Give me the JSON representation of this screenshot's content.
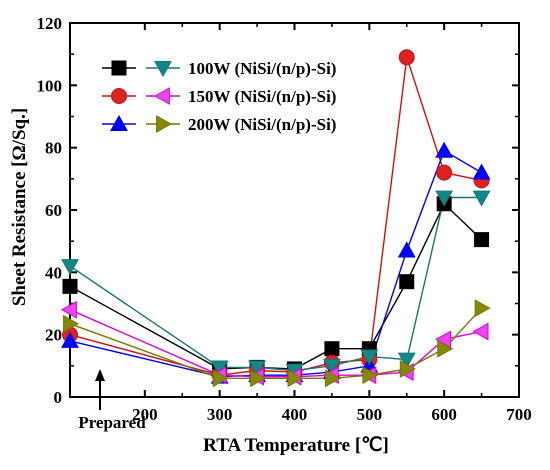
{
  "chart_data": {
    "type": "line",
    "xlabel": "RTA Temperature [℃]",
    "ylabel": "Sheet Resistance [Ω/Sq.]",
    "xlim": [
      100,
      700
    ],
    "ylim": [
      0,
      120
    ],
    "x_ticks": [
      200,
      300,
      400,
      500,
      600,
      700
    ],
    "x_tick_labels": [
      "200",
      "300",
      "400",
      "500",
      "600",
      "700"
    ],
    "y_ticks": [
      0,
      20,
      40,
      60,
      80,
      100,
      120
    ],
    "y_tick_labels": [
      "0",
      "20",
      "40",
      "60",
      "80",
      "100",
      "120"
    ],
    "prepared_label": "Prepared",
    "prepared_x": 100,
    "legend_position": "top-left",
    "grid": false,
    "series": [
      {
        "name": "100W (NiSi/(n/p)-Si)",
        "marker": "square",
        "color": "#000000",
        "fill": "#000000",
        "x": [
          100,
          300,
          350,
          400,
          450,
          500,
          550,
          600,
          650
        ],
        "y": [
          35.5,
          9,
          9.5,
          9,
          15.5,
          15.5,
          37,
          62,
          50.5
        ]
      },
      {
        "name": "150W (NiSi/(n/p)-Si)",
        "marker": "circle",
        "color": "#cc1111",
        "fill": "#dd2222",
        "x": [
          100,
          300,
          350,
          400,
          450,
          500,
          550,
          600,
          650
        ],
        "y": [
          20,
          7,
          8.5,
          8,
          11,
          12,
          109,
          72,
          69.5
        ]
      },
      {
        "name": "200W (NiSi/(n/p)-Si)",
        "marker": "triangle-up",
        "color": "#0000ee",
        "fill": "#0000ff",
        "x": [
          100,
          300,
          350,
          400,
          450,
          500,
          550,
          600,
          650
        ],
        "y": [
          18,
          6.5,
          7,
          7,
          8,
          10,
          47,
          79,
          72
        ]
      },
      {
        "name": "100W (NiSi/(n/p)-Si)",
        "marker": "triangle-down",
        "color": "#117777",
        "fill": "#118888",
        "x": [
          100,
          300,
          350,
          400,
          450,
          500,
          550,
          600,
          650
        ],
        "y": [
          42,
          9.5,
          9.5,
          8.5,
          10,
          13,
          12,
          64,
          64
        ]
      },
      {
        "name": "150W (NiSi/(n/p)-Si)",
        "marker": "triangle-left",
        "color": "#dd00dd",
        "fill": "#ee44ee",
        "x": [
          100,
          300,
          350,
          400,
          450,
          500,
          550,
          600,
          650
        ],
        "y": [
          28,
          7,
          6.5,
          6.5,
          7,
          7,
          8,
          18.5,
          21
        ]
      },
      {
        "name": "200W (NiSi/(n/p)-Si)",
        "marker": "triangle-right",
        "color": "#777700",
        "fill": "#888800",
        "x": [
          100,
          300,
          350,
          400,
          450,
          500,
          550,
          600,
          650
        ],
        "y": [
          23.5,
          6,
          6,
          6,
          6,
          7,
          9,
          15.5,
          28.5
        ]
      }
    ]
  }
}
